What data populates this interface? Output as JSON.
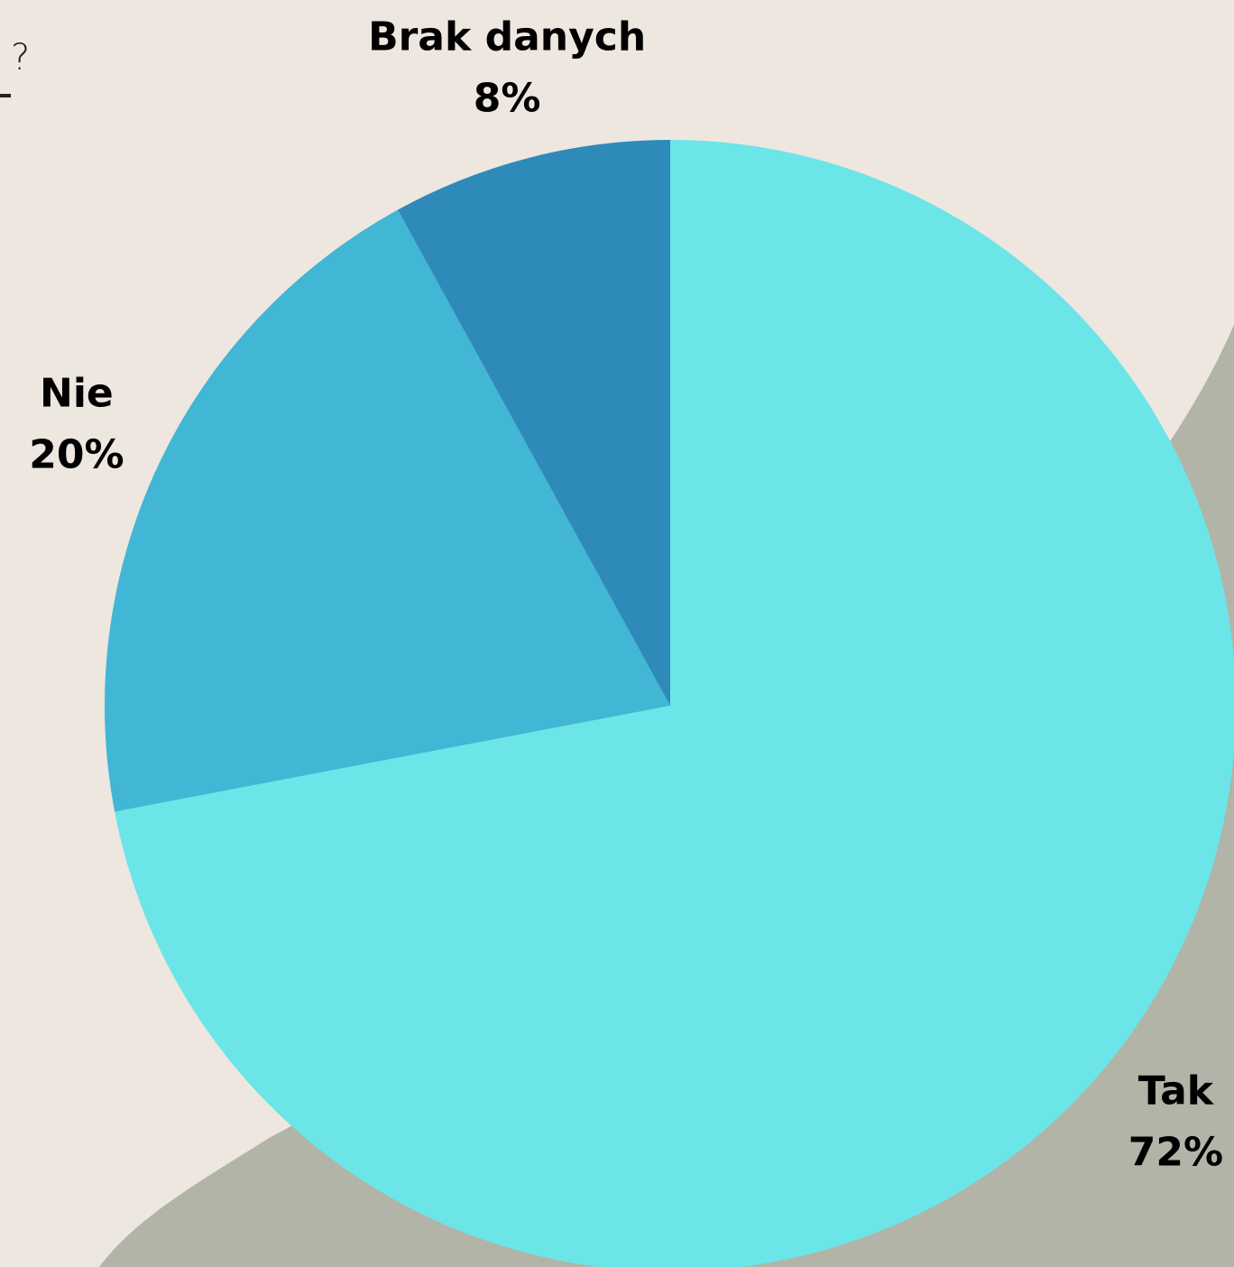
{
  "chart_data": {
    "type": "pie",
    "title": "?",
    "categories": [
      "Tak",
      "Nie",
      "Brak danych"
    ],
    "values": [
      72,
      20,
      8
    ],
    "value_labels": [
      "72%",
      "20%",
      "8%"
    ],
    "colors": [
      "#6ce5e8",
      "#42b6d5",
      "#2e8bb9"
    ]
  }
}
